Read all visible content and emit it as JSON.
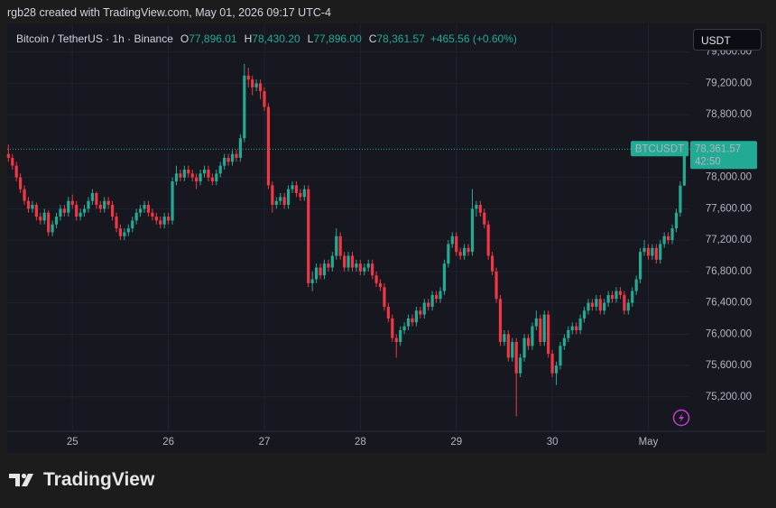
{
  "header": {
    "credit": "rgb28 created with TradingView.com, May 01, 2026 09:17 UTC-4"
  },
  "legend": {
    "symbol": "Bitcoin / TetherUS · 1h · Binance",
    "items": [
      {
        "key": "O",
        "value": "77,896.01"
      },
      {
        "key": "H",
        "value": "78,430.20"
      },
      {
        "key": "L",
        "value": "77,896.00"
      },
      {
        "key": "C",
        "value": "78,361.57"
      }
    ],
    "change": "+465.56 (+0.60%)"
  },
  "currency_button": "USDT",
  "footer": {
    "brand": "TradingView"
  },
  "chart_data": {
    "type": "candlestick",
    "symbol_tag": "BTCUSDT",
    "last_price_label": "78,361.57",
    "countdown": "42:50",
    "up_color": "#22ab94",
    "down_color": "#f23645",
    "xlim": [
      -0.3,
      170.5
    ],
    "xticks": [
      {
        "value": 16,
        "label": "25"
      },
      {
        "value": 40,
        "label": "26"
      },
      {
        "value": 64,
        "label": "27"
      },
      {
        "value": 88,
        "label": "28"
      },
      {
        "value": 112,
        "label": "29"
      },
      {
        "value": 136,
        "label": "30"
      },
      {
        "value": 160,
        "label": "May"
      }
    ],
    "ylim": [
      74760,
      79965
    ],
    "yticks": [
      {
        "value": 75200,
        "label": "75,200.00"
      },
      {
        "value": 75600,
        "label": "75,600.00"
      },
      {
        "value": 76000,
        "label": "76,000.00"
      },
      {
        "value": 76400,
        "label": "76,400.00"
      },
      {
        "value": 76800,
        "label": "76,800.00"
      },
      {
        "value": 77200,
        "label": "77,200.00"
      },
      {
        "value": 77600,
        "label": "77,600.00"
      },
      {
        "value": 78000,
        "label": "78,000.00"
      },
      {
        "value": 78800,
        "label": "78,800.00"
      },
      {
        "value": 79200,
        "label": "79,200.00"
      },
      {
        "value": 79600,
        "label": "79,600.00"
      }
    ],
    "candles": [
      [
        78300,
        78420,
        78200,
        78250
      ],
      [
        78250,
        78300,
        78100,
        78150
      ],
      [
        78150,
        78200,
        77950,
        78000
      ],
      [
        78000,
        78050,
        77800,
        77850
      ],
      [
        77850,
        77900,
        77650,
        77700
      ],
      [
        77700,
        77750,
        77550,
        77600
      ],
      [
        77600,
        77700,
        77550,
        77650
      ],
      [
        77650,
        77680,
        77450,
        77500
      ],
      [
        77500,
        77550,
        77400,
        77450
      ],
      [
        77450,
        77600,
        77400,
        77550
      ],
      [
        77550,
        77580,
        77250,
        77300
      ],
      [
        77300,
        77450,
        77250,
        77400
      ],
      [
        77400,
        77550,
        77350,
        77500
      ],
      [
        77500,
        77650,
        77450,
        77600
      ],
      [
        77600,
        77650,
        77500,
        77550
      ],
      [
        77550,
        77750,
        77500,
        77700
      ],
      [
        77700,
        77780,
        77600,
        77650
      ],
      [
        77650,
        77700,
        77450,
        77500
      ],
      [
        77500,
        77600,
        77450,
        77550
      ],
      [
        77550,
        77650,
        77500,
        77600
      ],
      [
        77600,
        77750,
        77550,
        77700
      ],
      [
        77700,
        77850,
        77650,
        77800
      ],
      [
        77800,
        77820,
        77600,
        77650
      ],
      [
        77650,
        77700,
        77550,
        77600
      ],
      [
        77600,
        77750,
        77550,
        77700
      ],
      [
        77700,
        77750,
        77600,
        77650
      ],
      [
        77650,
        77700,
        77450,
        77500
      ],
      [
        77500,
        77550,
        77300,
        77350
      ],
      [
        77350,
        77400,
        77200,
        77250
      ],
      [
        77250,
        77350,
        77200,
        77300
      ],
      [
        77300,
        77400,
        77250,
        77350
      ],
      [
        77350,
        77500,
        77300,
        77450
      ],
      [
        77450,
        77600,
        77400,
        77550
      ],
      [
        77550,
        77650,
        77500,
        77600
      ],
      [
        77600,
        77700,
        77550,
        77650
      ],
      [
        77650,
        77700,
        77500,
        77550
      ],
      [
        77550,
        77600,
        77450,
        77500
      ],
      [
        77500,
        77550,
        77400,
        77450
      ],
      [
        77450,
        77500,
        77350,
        77400
      ],
      [
        77400,
        77550,
        77350,
        77500
      ],
      [
        77500,
        77550,
        77400,
        77450
      ],
      [
        77450,
        78000,
        77400,
        77950
      ],
      [
        77950,
        78150,
        77900,
        78050
      ],
      [
        78050,
        78100,
        77950,
        78000
      ],
      [
        78000,
        78150,
        77950,
        78100
      ],
      [
        78100,
        78150,
        78000,
        78050
      ],
      [
        78050,
        78100,
        77950,
        78000
      ],
      [
        78000,
        78050,
        77850,
        77950
      ],
      [
        77950,
        78100,
        77900,
        78050
      ],
      [
        78050,
        78150,
        78000,
        78100
      ],
      [
        78100,
        78150,
        77950,
        78000
      ],
      [
        78000,
        78050,
        77900,
        77950
      ],
      [
        77950,
        78100,
        77900,
        78050
      ],
      [
        78050,
        78200,
        78000,
        78150
      ],
      [
        78150,
        78300,
        78100,
        78250
      ],
      [
        78250,
        78300,
        78150,
        78200
      ],
      [
        78200,
        78350,
        78150,
        78300
      ],
      [
        78300,
        78350,
        78200,
        78250
      ],
      [
        78250,
        78550,
        78200,
        78500
      ],
      [
        78500,
        79450,
        78450,
        79300
      ],
      [
        79300,
        79400,
        79150,
        79250
      ],
      [
        79250,
        79300,
        79050,
        79150
      ],
      [
        79150,
        79250,
        79100,
        79200
      ],
      [
        79200,
        79250,
        79000,
        79100
      ],
      [
        79100,
        79150,
        78850,
        78900
      ],
      [
        78900,
        78950,
        77850,
        77900
      ],
      [
        77900,
        77950,
        77550,
        77650
      ],
      [
        77650,
        77750,
        77600,
        77700
      ],
      [
        77700,
        77800,
        77650,
        77750
      ],
      [
        77750,
        77800,
        77600,
        77650
      ],
      [
        77650,
        77900,
        77600,
        77850
      ],
      [
        77850,
        77950,
        77800,
        77900
      ],
      [
        77900,
        77950,
        77750,
        77800
      ],
      [
        77800,
        77850,
        77700,
        77750
      ],
      [
        77750,
        77900,
        77700,
        77850
      ],
      [
        77850,
        77900,
        76600,
        76650
      ],
      [
        76650,
        76800,
        76550,
        76700
      ],
      [
        76700,
        76900,
        76650,
        76850
      ],
      [
        76850,
        76900,
        76700,
        76750
      ],
      [
        76750,
        76950,
        76700,
        76900
      ],
      [
        76900,
        76950,
        76800,
        76850
      ],
      [
        76850,
        77050,
        76800,
        77000
      ],
      [
        77000,
        77350,
        76950,
        77250
      ],
      [
        77250,
        77300,
        76950,
        77000
      ],
      [
        77000,
        77050,
        76800,
        76850
      ],
      [
        76850,
        77050,
        76800,
        77000
      ],
      [
        77000,
        77050,
        76800,
        76850
      ],
      [
        76850,
        76950,
        76800,
        76900
      ],
      [
        76900,
        76950,
        76750,
        76800
      ],
      [
        76800,
        76900,
        76750,
        76850
      ],
      [
        76850,
        76950,
        76800,
        76900
      ],
      [
        76900,
        76950,
        76700,
        76750
      ],
      [
        76750,
        76800,
        76600,
        76650
      ],
      [
        76650,
        76700,
        76550,
        76600
      ],
      [
        76600,
        76650,
        76300,
        76350
      ],
      [
        76350,
        76400,
        76150,
        76200
      ],
      [
        76200,
        76250,
        75900,
        75950
      ],
      [
        75950,
        76000,
        75700,
        75900
      ],
      [
        75900,
        76100,
        75850,
        76050
      ],
      [
        76050,
        76150,
        76000,
        76100
      ],
      [
        76100,
        76250,
        76050,
        76200
      ],
      [
        76200,
        76250,
        76100,
        76150
      ],
      [
        76150,
        76350,
        76100,
        76300
      ],
      [
        76300,
        76350,
        76200,
        76250
      ],
      [
        76250,
        76450,
        76200,
        76400
      ],
      [
        76400,
        76450,
        76300,
        76350
      ],
      [
        76350,
        76550,
        76300,
        76500
      ],
      [
        76500,
        76550,
        76400,
        76450
      ],
      [
        76450,
        76600,
        76400,
        76550
      ],
      [
        76550,
        76950,
        76500,
        76900
      ],
      [
        76900,
        77200,
        76850,
        77150
      ],
      [
        77150,
        77300,
        77100,
        77250
      ],
      [
        77250,
        77300,
        77000,
        77050
      ],
      [
        77050,
        77100,
        76950,
        77000
      ],
      [
        77000,
        77150,
        76950,
        77100
      ],
      [
        77100,
        77150,
        77000,
        77050
      ],
      [
        77050,
        77850,
        77000,
        77600
      ],
      [
        77600,
        77700,
        77500,
        77650
      ],
      [
        77650,
        77700,
        77500,
        77550
      ],
      [
        77550,
        77600,
        77350,
        77400
      ],
      [
        77400,
        77450,
        76950,
        77000
      ],
      [
        77000,
        77050,
        76750,
        76800
      ],
      [
        76800,
        76850,
        76400,
        76450
      ],
      [
        76450,
        76500,
        75850,
        75900
      ],
      [
        75900,
        76050,
        75850,
        76000
      ],
      [
        76000,
        76050,
        75650,
        75700
      ],
      [
        75700,
        75950,
        75650,
        75900
      ],
      [
        75900,
        75950,
        74950,
        75500
      ],
      [
        75500,
        75750,
        75450,
        75700
      ],
      [
        75700,
        76000,
        75650,
        75950
      ],
      [
        75950,
        76000,
        75800,
        75850
      ],
      [
        75850,
        76150,
        75800,
        76100
      ],
      [
        76100,
        76300,
        76050,
        76200
      ],
      [
        76200,
        76250,
        75850,
        75900
      ],
      [
        75900,
        76300,
        75850,
        76250
      ],
      [
        76250,
        76300,
        75700,
        75750
      ],
      [
        75750,
        75800,
        75450,
        75500
      ],
      [
        75500,
        75650,
        75350,
        75600
      ],
      [
        75600,
        75900,
        75550,
        75850
      ],
      [
        75850,
        76000,
        75800,
        75950
      ],
      [
        75950,
        76100,
        75900,
        76050
      ],
      [
        76050,
        76150,
        76000,
        76100
      ],
      [
        76100,
        76150,
        76000,
        76050
      ],
      [
        76050,
        76250,
        76000,
        76200
      ],
      [
        76200,
        76350,
        76150,
        76300
      ],
      [
        76300,
        76450,
        76250,
        76400
      ],
      [
        76400,
        76450,
        76300,
        76350
      ],
      [
        76350,
        76500,
        76300,
        76450
      ],
      [
        76450,
        76500,
        76250,
        76300
      ],
      [
        76300,
        76450,
        76250,
        76400
      ],
      [
        76400,
        76550,
        76350,
        76500
      ],
      [
        76500,
        76550,
        76400,
        76450
      ],
      [
        76450,
        76600,
        76400,
        76550
      ],
      [
        76550,
        76600,
        76450,
        76500
      ],
      [
        76500,
        76550,
        76250,
        76300
      ],
      [
        76300,
        76450,
        76250,
        76400
      ],
      [
        76400,
        76600,
        76350,
        76550
      ],
      [
        76550,
        76750,
        76500,
        76700
      ],
      [
        76700,
        77100,
        76650,
        77050
      ],
      [
        77050,
        77200,
        77000,
        77100
      ],
      [
        77100,
        77150,
        76950,
        77000
      ],
      [
        77000,
        77150,
        76950,
        77100
      ],
      [
        77100,
        77150,
        76900,
        76950
      ],
      [
        76950,
        77200,
        76900,
        77150
      ],
      [
        77150,
        77300,
        77100,
        77250
      ],
      [
        77250,
        77300,
        77150,
        77200
      ],
      [
        77200,
        77400,
        77150,
        77350
      ],
      [
        77350,
        77600,
        77300,
        77550
      ],
      [
        77550,
        77950,
        77500,
        77896.01
      ],
      [
        77896.01,
        78430.2,
        77896,
        78361.57
      ]
    ]
  }
}
